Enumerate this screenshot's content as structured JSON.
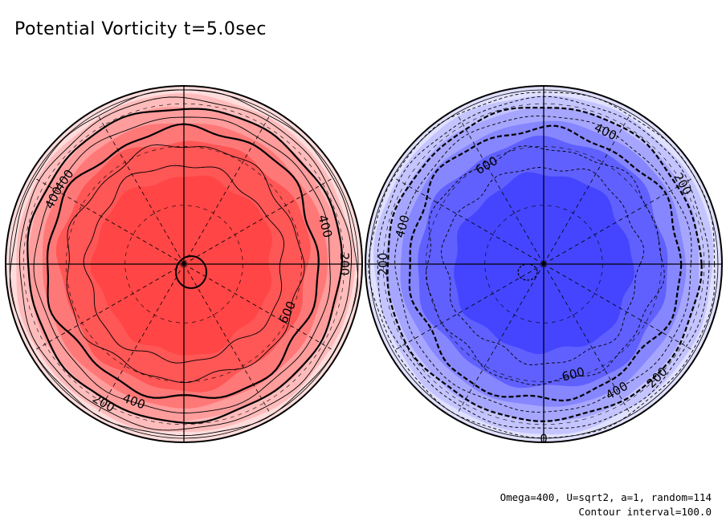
{
  "title": "Potential Vorticity t=5.0sec",
  "footer": {
    "params": "Omega=400, U=sqrt2, a=1, random=114",
    "contour_interval": "Contour interval=100.0"
  },
  "colors": {
    "red_levels": [
      "#ffdcdc",
      "#ffbcbc",
      "#ff9c9c",
      "#ff7878",
      "#ff5656",
      "#ff4545"
    ],
    "blue_levels": [
      "#e0e0ff",
      "#c4c4ff",
      "#a6a6ff",
      "#8686ff",
      "#6060ff",
      "#4545ff"
    ],
    "contour": "#000000"
  },
  "hemispheres": [
    {
      "name": "north",
      "color_scheme": "red",
      "contour_labels": [
        {
          "text": "400",
          "angle_deg": 215,
          "level": 400
        },
        {
          "text": "400",
          "angle_deg": 207,
          "level": 400
        },
        {
          "text": "400",
          "angle_deg": 345,
          "level": 400
        },
        {
          "text": "600",
          "angle_deg": 25,
          "level": 600
        },
        {
          "text": "200",
          "angle_deg": 0,
          "level": 200
        },
        {
          "text": "400",
          "angle_deg": 110,
          "level": 400
        },
        {
          "text": "200",
          "angle_deg": 120,
          "level": 200
        }
      ]
    },
    {
      "name": "south",
      "color_scheme": "blue",
      "contour_labels": [
        {
          "text": "400",
          "angle_deg": 295,
          "level": 400
        },
        {
          "text": "600",
          "angle_deg": 240,
          "level": 600
        },
        {
          "text": "400",
          "angle_deg": 195,
          "level": 400
        },
        {
          "text": "200",
          "angle_deg": 330,
          "level": 200
        },
        {
          "text": "200",
          "angle_deg": 180,
          "level": 200
        },
        {
          "text": "600",
          "angle_deg": 75,
          "level": 600
        },
        {
          "text": "400",
          "angle_deg": 60,
          "level": 400
        },
        {
          "text": "200",
          "angle_deg": 45,
          "level": 200
        },
        {
          "text": "0",
          "angle_deg": 90,
          "level": 0
        }
      ]
    }
  ]
}
